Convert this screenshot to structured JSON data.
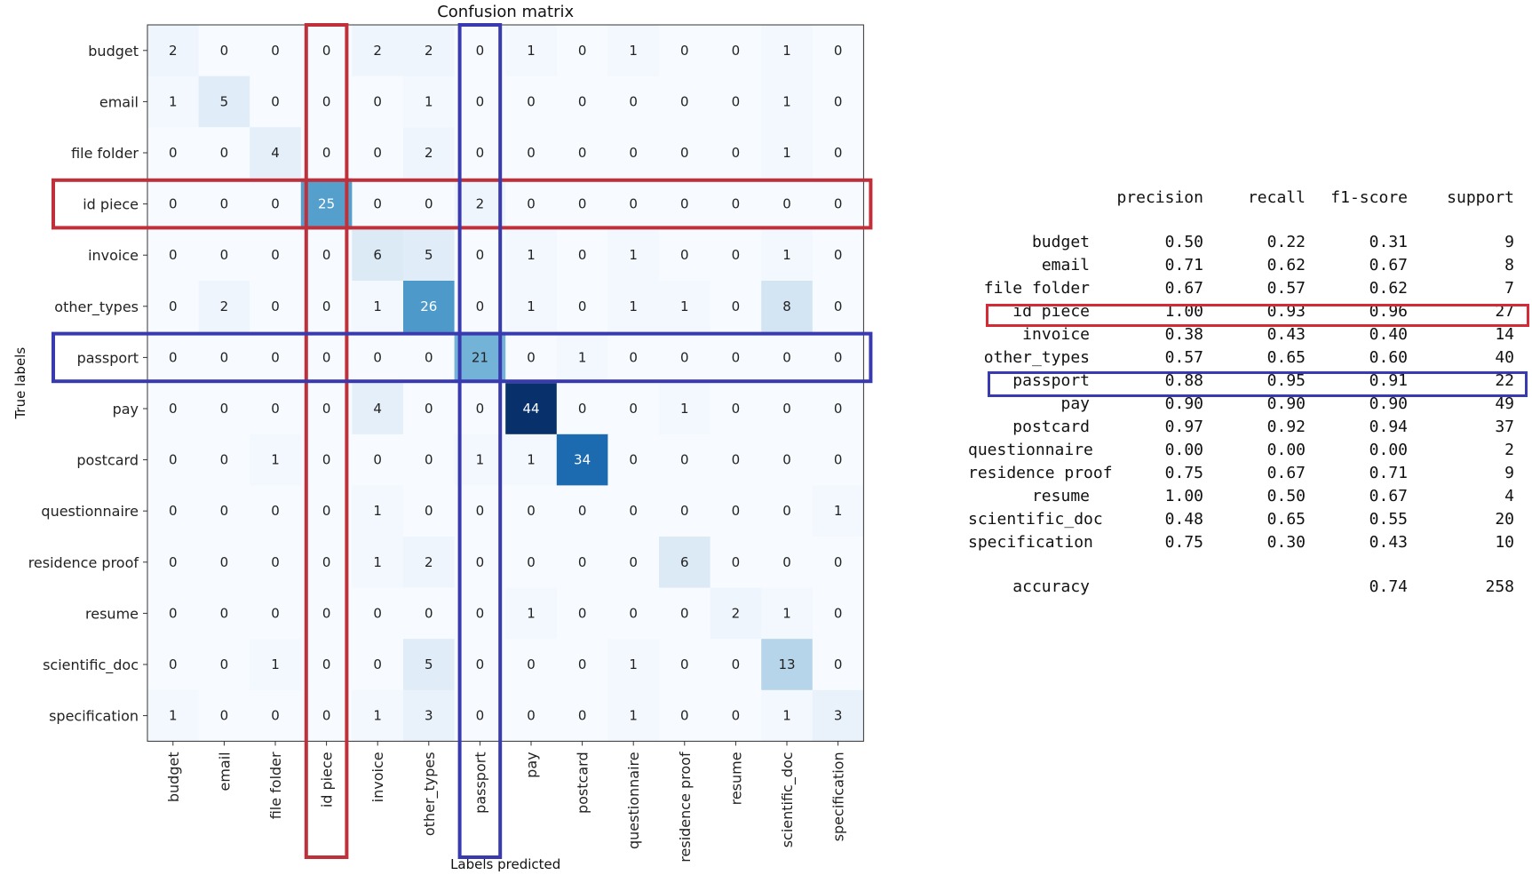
{
  "chart_data": [
    {
      "type": "heatmap",
      "title": "Confusion matrix",
      "xlabel": "Labels predicted",
      "ylabel": "True labels",
      "labels": [
        "budget",
        "email",
        "file folder",
        "id piece",
        "invoice",
        "other_types",
        "passport",
        "pay",
        "postcard",
        "questionnaire",
        "residence proof",
        "resume",
        "scientific_doc",
        "specification"
      ],
      "matrix": [
        [
          2,
          0,
          0,
          0,
          2,
          2,
          0,
          1,
          0,
          1,
          0,
          0,
          1,
          0
        ],
        [
          1,
          5,
          0,
          0,
          0,
          1,
          0,
          0,
          0,
          0,
          0,
          0,
          1,
          0
        ],
        [
          0,
          0,
          4,
          0,
          0,
          2,
          0,
          0,
          0,
          0,
          0,
          0,
          1,
          0
        ],
        [
          0,
          0,
          0,
          25,
          0,
          0,
          2,
          0,
          0,
          0,
          0,
          0,
          0,
          0
        ],
        [
          0,
          0,
          0,
          0,
          6,
          5,
          0,
          1,
          0,
          1,
          0,
          0,
          1,
          0
        ],
        [
          0,
          2,
          0,
          0,
          1,
          26,
          0,
          1,
          0,
          1,
          1,
          0,
          8,
          0
        ],
        [
          0,
          0,
          0,
          0,
          0,
          0,
          21,
          0,
          1,
          0,
          0,
          0,
          0,
          0
        ],
        [
          0,
          0,
          0,
          0,
          4,
          0,
          0,
          44,
          0,
          0,
          1,
          0,
          0,
          0
        ],
        [
          0,
          0,
          1,
          0,
          0,
          0,
          1,
          1,
          34,
          0,
          0,
          0,
          0,
          0
        ],
        [
          0,
          0,
          0,
          0,
          1,
          0,
          0,
          0,
          0,
          0,
          0,
          0,
          0,
          1
        ],
        [
          0,
          0,
          0,
          0,
          1,
          2,
          0,
          0,
          0,
          0,
          6,
          0,
          0,
          0
        ],
        [
          0,
          0,
          0,
          0,
          0,
          0,
          0,
          1,
          0,
          0,
          0,
          2,
          1,
          0
        ],
        [
          0,
          0,
          1,
          0,
          0,
          5,
          0,
          0,
          0,
          1,
          0,
          0,
          13,
          0
        ],
        [
          1,
          0,
          0,
          0,
          1,
          3,
          0,
          0,
          0,
          1,
          0,
          0,
          1,
          3
        ]
      ],
      "highlights": [
        {
          "label": "id piece",
          "color": "#c0303a"
        },
        {
          "label": "passport",
          "color": "#3a3ab0"
        }
      ]
    },
    {
      "type": "table",
      "columns": [
        "",
        "precision",
        "recall",
        "f1-score",
        "support"
      ],
      "rows": [
        {
          "label": "budget",
          "precision": "0.50",
          "recall": "0.22",
          "f1": "0.31",
          "support": "9"
        },
        {
          "label": "email",
          "precision": "0.71",
          "recall": "0.62",
          "f1": "0.67",
          "support": "8"
        },
        {
          "label": "file folder",
          "precision": "0.67",
          "recall": "0.57",
          "f1": "0.62",
          "support": "7"
        },
        {
          "label": "id piece",
          "precision": "1.00",
          "recall": "0.93",
          "f1": "0.96",
          "support": "27"
        },
        {
          "label": "invoice",
          "precision": "0.38",
          "recall": "0.43",
          "f1": "0.40",
          "support": "14"
        },
        {
          "label": "other_types",
          "precision": "0.57",
          "recall": "0.65",
          "f1": "0.60",
          "support": "40"
        },
        {
          "label": "passport",
          "precision": "0.88",
          "recall": "0.95",
          "f1": "0.91",
          "support": "22"
        },
        {
          "label": "pay",
          "precision": "0.90",
          "recall": "0.90",
          "f1": "0.90",
          "support": "49"
        },
        {
          "label": "postcard",
          "precision": "0.97",
          "recall": "0.92",
          "f1": "0.94",
          "support": "37"
        },
        {
          "label": "questionnaire",
          "precision": "0.00",
          "recall": "0.00",
          "f1": "0.00",
          "support": "2"
        },
        {
          "label": "residence proof",
          "precision": "0.75",
          "recall": "0.67",
          "f1": "0.71",
          "support": "9"
        },
        {
          "label": "resume",
          "precision": "1.00",
          "recall": "0.50",
          "f1": "0.67",
          "support": "4"
        },
        {
          "label": "scientific_doc",
          "precision": "0.48",
          "recall": "0.65",
          "f1": "0.55",
          "support": "20"
        },
        {
          "label": "specification",
          "precision": "0.75",
          "recall": "0.30",
          "f1": "0.43",
          "support": "10"
        }
      ],
      "accuracy": {
        "label": "accuracy",
        "f1": "0.74",
        "support": "258"
      }
    }
  ]
}
